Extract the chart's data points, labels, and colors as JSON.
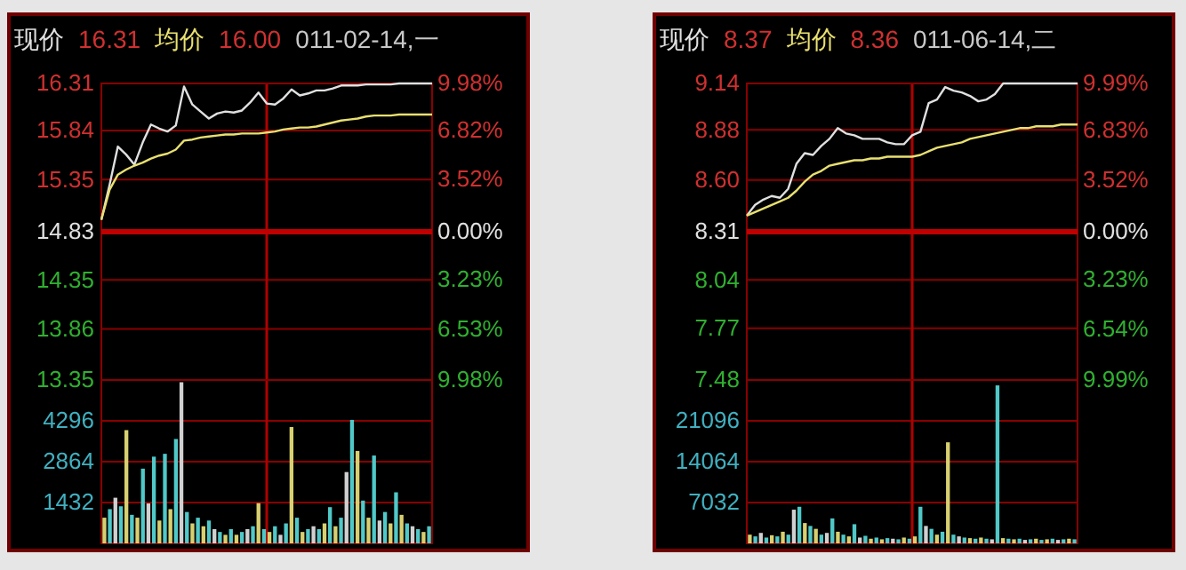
{
  "chart_data": [
    {
      "type": "line",
      "categories": [
        null,
        null,
        null,
        null,
        null,
        null,
        null,
        null,
        null,
        null,
        null,
        null,
        null,
        null,
        null,
        null,
        null,
        null,
        null,
        null,
        null,
        null,
        null,
        null,
        null,
        null,
        null,
        null,
        null,
        null,
        null,
        null,
        null,
        null,
        null,
        null,
        null,
        null,
        null,
        null,
        null
      ],
      "ylim": [
        13.35,
        16.31
      ],
      "yticks": [
        13.35,
        13.86,
        14.35,
        14.83,
        15.35,
        15.84,
        16.31
      ],
      "y2lim": [
        -9.98,
        9.98
      ],
      "y2ticks": [
        {
          "value": -9.98,
          "label": "9.98%"
        },
        {
          "value": -6.53,
          "label": "6.53%"
        },
        {
          "value": -3.23,
          "label": "3.23%"
        },
        {
          "value": 0,
          "label": "0.00%"
        },
        {
          "value": 3.52,
          "label": "3.52%"
        },
        {
          "value": 6.82,
          "label": "6.82%"
        },
        {
          "value": 9.98,
          "label": "9.98%"
        }
      ],
      "grid": true,
      "ref_lines": [
        {
          "axis": "y",
          "value": 14.83,
          "color": "#c00000"
        }
      ],
      "annotations": [
        "16.31",
        "16.00",
        "011-02-14,一"
      ],
      "series": [
        {
          "name": "现价",
          "color": "#e0e0e0",
          "values": [
            14.95,
            15.3,
            15.68,
            15.6,
            15.5,
            15.72,
            15.9,
            15.86,
            15.83,
            15.89,
            16.28,
            16.1,
            16.03,
            15.96,
            16.01,
            16.03,
            16.02,
            16.04,
            16.12,
            16.22,
            16.11,
            16.1,
            16.16,
            16.25,
            16.19,
            16.21,
            16.24,
            16.24,
            16.26,
            16.29,
            16.29,
            16.29,
            16.3,
            16.3,
            16.3,
            16.3,
            16.31,
            16.31,
            16.31,
            16.31,
            16.31
          ]
        },
        {
          "name": "均价",
          "color": "#e8e070",
          "values": [
            14.95,
            15.25,
            15.4,
            15.45,
            15.49,
            15.52,
            15.56,
            15.59,
            15.61,
            15.65,
            15.74,
            15.75,
            15.77,
            15.78,
            15.79,
            15.8,
            15.8,
            15.81,
            15.81,
            15.81,
            15.82,
            15.83,
            15.85,
            15.86,
            15.87,
            15.87,
            15.88,
            15.9,
            15.92,
            15.94,
            15.95,
            15.96,
            15.98,
            15.99,
            15.99,
            15.99,
            16.0,
            16.0,
            16.0,
            16.0,
            16.0
          ]
        }
      ]
    },
    {
      "type": "bar",
      "categories": [
        null,
        null,
        null,
        null,
        null,
        null,
        null,
        null,
        null,
        null,
        null,
        null,
        null,
        null,
        null,
        null,
        null,
        null,
        null,
        null,
        null,
        null,
        null,
        null,
        null,
        null,
        null,
        null,
        null,
        null,
        null,
        null,
        null,
        null,
        null,
        null,
        null,
        null,
        null,
        null,
        null,
        null,
        null,
        null,
        null,
        null,
        null,
        null,
        null,
        null,
        null,
        null,
        null,
        null,
        null,
        null,
        null,
        null,
        null,
        null
      ],
      "ylim": [
        0,
        5728
      ],
      "yticks": [
        1432,
        2864,
        4296,
        {
          "value": 5728,
          "label": null
        }
      ],
      "grid": true,
      "values": [
        900,
        1200,
        1600,
        1300,
        3970,
        1000,
        900,
        2620,
        1400,
        3040,
        800,
        3140,
        1200,
        3660,
        5650,
        1100,
        700,
        900,
        600,
        800,
        500,
        400,
        300,
        500,
        300,
        400,
        500,
        600,
        1410,
        500,
        400,
        600,
        300,
        700,
        4080,
        900,
        400,
        500,
        600,
        500,
        700,
        1270,
        600,
        900,
        2500,
        4330,
        3240,
        1500,
        900,
        3080,
        800,
        1100,
        700,
        1790,
        1000,
        700,
        600,
        500,
        400,
        600
      ],
      "colors": [
        "#d8d070",
        "#50c8c8",
        "#d0d0d0",
        "#50c8c8",
        "#d8d070",
        "#50c8c8",
        "#d8d070",
        "#50c8c8",
        "#d0d0d0",
        "#50c8c8",
        "#d8d070",
        "#50c8c8",
        "#d8d070",
        "#50c8c8",
        "#d0d0d0",
        "#50c8c8",
        "#d8d070",
        "#50c8c8",
        "#d8d070",
        "#50c8c8",
        "#d0d0d0",
        "#50c8c8",
        "#d8d070",
        "#50c8c8",
        "#d8d070",
        "#50c8c8",
        "#d0d0d0",
        "#50c8c8",
        "#d8d070",
        "#50c8c8",
        "#d8d070",
        "#50c8c8",
        "#d0d0d0",
        "#50c8c8",
        "#d8d070",
        "#50c8c8",
        "#d8d070",
        "#50c8c8",
        "#d0d0d0",
        "#50c8c8",
        "#d8d070",
        "#50c8c8",
        "#d8d070",
        "#50c8c8",
        "#d0d0d0",
        "#50c8c8",
        "#d8d070",
        "#50c8c8",
        "#d8d070",
        "#50c8c8",
        "#d0d0d0",
        "#50c8c8",
        "#d8d070",
        "#50c8c8",
        "#d8d070",
        "#50c8c8",
        "#d0d0d0",
        "#50c8c8",
        "#d8d070",
        "#50c8c8"
      ]
    },
    {
      "type": "line",
      "categories": [
        null,
        null,
        null,
        null,
        null,
        null,
        null,
        null,
        null,
        null,
        null,
        null,
        null,
        null,
        null,
        null,
        null,
        null,
        null,
        null,
        null,
        null,
        null,
        null,
        null,
        null,
        null,
        null,
        null,
        null,
        null,
        null,
        null,
        null,
        null,
        null,
        null,
        null,
        null,
        null,
        null
      ],
      "ylim": [
        7.48,
        9.14
      ],
      "yticks": [
        7.48,
        7.77,
        8.04,
        8.31,
        {
          "value": 8.6,
          "label": "8.60"
        },
        8.88,
        9.14
      ],
      "y2lim": [
        -9.99,
        9.99
      ],
      "y2ticks": [
        {
          "value": -9.99,
          "label": "9.99%"
        },
        {
          "value": -6.54,
          "label": "6.54%"
        },
        {
          "value": -3.23,
          "label": "3.23%"
        },
        {
          "value": 0,
          "label": "0.00%"
        },
        {
          "value": 3.52,
          "label": "3.52%"
        },
        {
          "value": 6.83,
          "label": "6.83%"
        },
        {
          "value": 9.99,
          "label": "9.99%"
        }
      ],
      "grid": true,
      "ref_lines": [
        {
          "axis": "y",
          "value": 8.31,
          "color": "#c00000"
        }
      ],
      "annotations": [
        "8.37",
        "8.36",
        "011-06-14,二"
      ],
      "series": [
        {
          "name": "现价",
          "color": "#e0e0e0",
          "values": [
            8.4,
            8.46,
            8.49,
            8.51,
            8.5,
            8.55,
            8.69,
            8.75,
            8.74,
            8.79,
            8.83,
            8.89,
            8.86,
            8.85,
            8.83,
            8.83,
            8.83,
            8.81,
            8.8,
            8.8,
            8.85,
            8.87,
            9.03,
            9.05,
            9.12,
            9.1,
            9.09,
            9.07,
            9.04,
            9.05,
            9.08,
            9.14,
            9.14,
            9.14,
            9.14,
            9.14,
            9.14,
            9.14,
            9.14,
            9.14,
            9.14
          ]
        },
        {
          "name": "均价",
          "color": "#e8e070",
          "values": [
            8.4,
            8.42,
            8.44,
            8.46,
            8.48,
            8.5,
            8.54,
            8.59,
            8.63,
            8.65,
            8.68,
            8.69,
            8.7,
            8.71,
            8.71,
            8.72,
            8.72,
            8.73,
            8.73,
            8.73,
            8.73,
            8.74,
            8.76,
            8.78,
            8.79,
            8.8,
            8.81,
            8.83,
            8.84,
            8.85,
            8.86,
            8.87,
            8.88,
            8.89,
            8.89,
            8.9,
            8.9,
            8.9,
            8.91,
            8.91,
            8.91
          ]
        }
      ]
    },
    {
      "type": "bar",
      "categories": [
        null,
        null,
        null,
        null,
        null,
        null,
        null,
        null,
        null,
        null,
        null,
        null,
        null,
        null,
        null,
        null,
        null,
        null,
        null,
        null,
        null,
        null,
        null,
        null,
        null,
        null,
        null,
        null,
        null,
        null,
        null,
        null,
        null,
        null,
        null,
        null,
        null,
        null,
        null,
        null,
        null,
        null,
        null,
        null,
        null,
        null,
        null,
        null,
        null,
        null,
        null,
        null,
        null,
        null,
        null,
        null,
        null,
        null,
        null,
        null
      ],
      "ylim": [
        0,
        28128
      ],
      "yticks": [
        7032,
        14064,
        21096,
        {
          "value": 28128,
          "label": null
        }
      ],
      "grid": true,
      "values": [
        1500,
        1200,
        1800,
        1000,
        1400,
        1200,
        2000,
        1500,
        5800,
        6300,
        3500,
        3000,
        2500,
        1500,
        1800,
        4300,
        2000,
        1500,
        1200,
        3300,
        1000,
        1300,
        800,
        1000,
        700,
        900,
        800,
        700,
        1000,
        800,
        1200,
        6300,
        3000,
        2500,
        1500,
        2000,
        17400,
        1500,
        1200,
        1000,
        900,
        800,
        1000,
        800,
        700,
        27200,
        900,
        800,
        700,
        800,
        600,
        700,
        800,
        600,
        700,
        800,
        600,
        700,
        800,
        700
      ],
      "colors": [
        "#d8d070",
        "#50c8c8",
        "#d0d0d0",
        "#50c8c8",
        "#d8d070",
        "#50c8c8",
        "#d8d070",
        "#50c8c8",
        "#d0d0d0",
        "#50c8c8",
        "#d8d070",
        "#50c8c8",
        "#d8d070",
        "#50c8c8",
        "#d0d0d0",
        "#50c8c8",
        "#d8d070",
        "#50c8c8",
        "#d8d070",
        "#50c8c8",
        "#d0d0d0",
        "#50c8c8",
        "#d8d070",
        "#50c8c8",
        "#d8d070",
        "#50c8c8",
        "#d0d0d0",
        "#50c8c8",
        "#d8d070",
        "#50c8c8",
        "#d8d070",
        "#50c8c8",
        "#d0d0d0",
        "#50c8c8",
        "#d8d070",
        "#50c8c8",
        "#d8d070",
        "#50c8c8",
        "#d0d0d0",
        "#50c8c8",
        "#d8d070",
        "#50c8c8",
        "#d8d070",
        "#50c8c8",
        "#d0d0d0",
        "#50c8c8",
        "#d8d070",
        "#50c8c8",
        "#d8d070",
        "#50c8c8",
        "#d0d0d0",
        "#50c8c8",
        "#d8d070",
        "#50c8c8",
        "#d8d070",
        "#50c8c8",
        "#d0d0d0",
        "#50c8c8",
        "#d8d070",
        "#50c8c8"
      ]
    }
  ]
}
